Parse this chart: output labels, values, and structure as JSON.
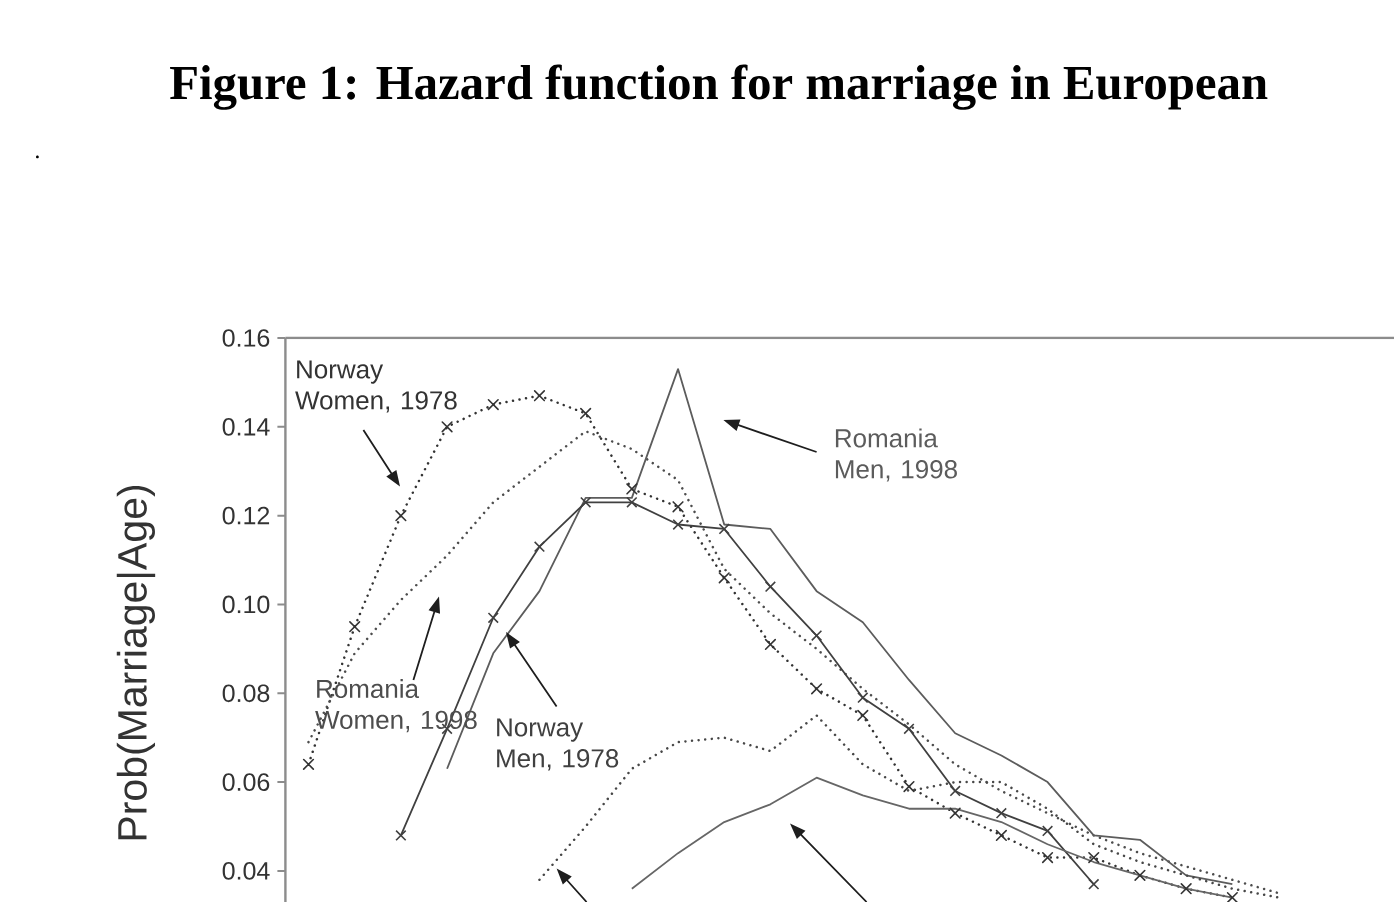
{
  "chart_data": {
    "type": "line",
    "title": "Figure 1: Hazard function for marriage in European",
    "ylabel": "Prob(Marriage|Age)",
    "annotations": [
      "."
    ],
    "categories": [
      null,
      null,
      null,
      null,
      null,
      null,
      null,
      null,
      null,
      null,
      null,
      null,
      null,
      null,
      null,
      null,
      null,
      null,
      null,
      null,
      null,
      null,
      null,
      null
    ],
    "ylim": [
      0.033,
      0.16
    ],
    "yticks": [
      0.04,
      0.06,
      0.08,
      {
        "value": 0.1,
        "label": "0.10"
      },
      0.12,
      0.14,
      0.16
    ],
    "series": [
      {
        "name": "Norway Women, 1978",
        "color": "#333333",
        "line_style": "dotted",
        "marker": "cross",
        "values": [
          0.064,
          0.095,
          0.12,
          0.14,
          0.145,
          0.147,
          0.143,
          0.126,
          0.122,
          0.106,
          0.091,
          0.081,
          0.075,
          0.059,
          0.053,
          0.048,
          0.043,
          0.043,
          0.039,
          0.036,
          0.034,
          null,
          null,
          null
        ]
      },
      {
        "name": "Romania Women, 1998",
        "color": "#4d4d4d",
        "line_style": "dotted",
        "marker": "none",
        "values": [
          0.069,
          0.089,
          0.101,
          0.111,
          0.123,
          0.131,
          0.139,
          0.135,
          0.128,
          0.108,
          0.098,
          0.09,
          0.081,
          0.073,
          0.064,
          0.058,
          0.053,
          0.048,
          0.044,
          0.041,
          0.038,
          0.035,
          null,
          null
        ]
      },
      {
        "name": "Romania Men, 1998",
        "color": "#5c5c5c",
        "line_style": "solid",
        "marker": "none",
        "values": [
          null,
          null,
          null,
          0.063,
          0.089,
          0.103,
          0.124,
          0.124,
          0.153,
          0.118,
          0.117,
          0.103,
          0.096,
          0.083,
          0.071,
          0.066,
          0.06,
          0.048,
          0.047,
          0.039,
          0.037,
          null,
          null,
          null
        ]
      },
      {
        "name": "Norway Men, 1978",
        "color": "#404040",
        "line_style": "solid",
        "marker": "cross",
        "values": [
          null,
          null,
          0.048,
          0.072,
          0.097,
          0.113,
          0.123,
          0.123,
          0.118,
          0.117,
          0.104,
          0.093,
          0.079,
          0.072,
          0.058,
          0.053,
          0.049,
          0.037,
          null,
          null,
          null,
          null,
          null,
          null
        ]
      },
      {
        "color": "#474747",
        "line_style": "dotted",
        "marker": "none",
        "values": [
          null,
          null,
          null,
          null,
          null,
          0.038,
          0.05,
          0.063,
          0.069,
          0.07,
          0.067,
          0.075,
          0.064,
          0.058,
          0.06,
          0.06,
          0.054,
          0.046,
          0.042,
          0.039,
          0.036,
          0.034,
          null,
          null
        ]
      },
      {
        "color": "#666666",
        "line_style": "solid",
        "marker": "none",
        "values": [
          null,
          null,
          null,
          null,
          null,
          null,
          null,
          0.036,
          0.044,
          0.051,
          0.055,
          0.061,
          0.057,
          0.054,
          0.054,
          0.051,
          0.046,
          0.042,
          0.039,
          0.036,
          0.034,
          null,
          null,
          null
        ]
      }
    ]
  }
}
